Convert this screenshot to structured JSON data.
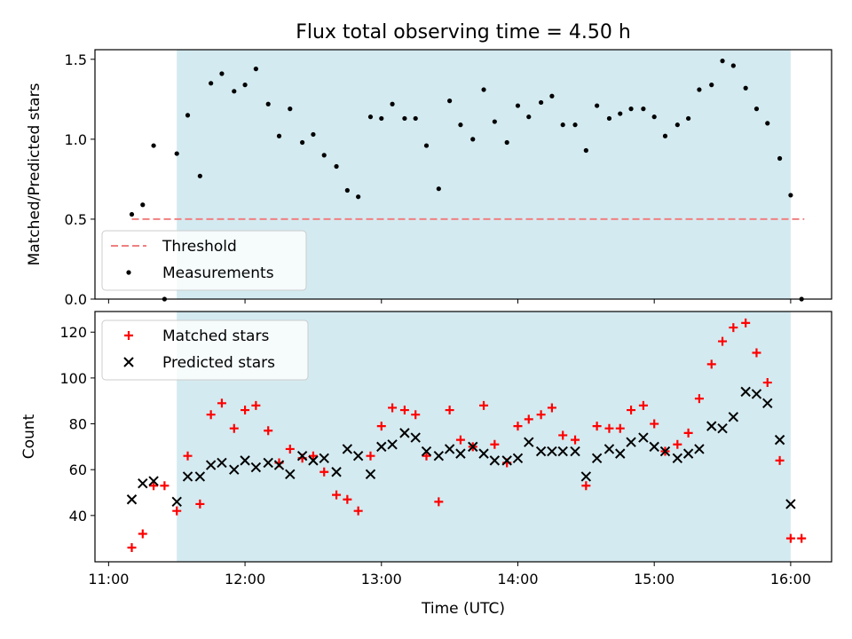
{
  "chart_data": {
    "type": "scatter",
    "title": "Flux total observing time = 4.50 h",
    "xlabel": "Time (UTC)",
    "x_unit": "hours UTC",
    "xlim": [
      10.9,
      16.3
    ],
    "x_ticks": [
      {
        "value": 11,
        "label": "11:00"
      },
      {
        "value": 12,
        "label": "12:00"
      },
      {
        "value": 13,
        "label": "13:00"
      },
      {
        "value": 14,
        "label": "14:00"
      },
      {
        "value": 15,
        "label": "15:00"
      },
      {
        "value": 16,
        "label": "16:00"
      }
    ],
    "observing_window": {
      "start": 11.5,
      "end": 16.0,
      "color": "#d3eaf0"
    },
    "panels": [
      {
        "name": "ratio",
        "ylabel": "Matched/Predicted stars",
        "ylim": [
          0,
          1.56
        ],
        "y_ticks": [
          0,
          0.5,
          1.0,
          1.5
        ],
        "y_tick_labels": [
          "0.0",
          "0.5",
          "1.0",
          "1.5"
        ],
        "legend": {
          "placement": "lower-left",
          "entries": [
            "Threshold",
            "Measurements"
          ]
        },
        "series": [
          {
            "name": "Threshold",
            "style": "dashed-line",
            "color": "#f08080",
            "points": [
              [
                11.17,
                0.5
              ],
              [
                16.1,
                0.5
              ]
            ]
          },
          {
            "name": "Measurements",
            "style": "dot",
            "color": "#000000",
            "points": [
              [
                11.17,
                0.53
              ],
              [
                11.25,
                0.59
              ],
              [
                11.33,
                0.96
              ],
              [
                11.41,
                0.0
              ],
              [
                11.5,
                0.91
              ],
              [
                11.58,
                1.15
              ],
              [
                11.67,
                0.77
              ],
              [
                11.75,
                1.35
              ],
              [
                11.83,
                1.41
              ],
              [
                11.92,
                1.3
              ],
              [
                12.0,
                1.34
              ],
              [
                12.08,
                1.44
              ],
              [
                12.17,
                1.22
              ],
              [
                12.25,
                1.02
              ],
              [
                12.33,
                1.19
              ],
              [
                12.42,
                0.98
              ],
              [
                12.5,
                1.03
              ],
              [
                12.58,
                0.9
              ],
              [
                12.67,
                0.83
              ],
              [
                12.75,
                0.68
              ],
              [
                12.83,
                0.64
              ],
              [
                12.92,
                1.14
              ],
              [
                13.0,
                1.13
              ],
              [
                13.08,
                1.22
              ],
              [
                13.17,
                1.13
              ],
              [
                13.25,
                1.13
              ],
              [
                13.33,
                0.96
              ],
              [
                13.42,
                0.69
              ],
              [
                13.5,
                1.24
              ],
              [
                13.58,
                1.09
              ],
              [
                13.67,
                1.0
              ],
              [
                13.75,
                1.31
              ],
              [
                13.83,
                1.11
              ],
              [
                13.92,
                0.98
              ],
              [
                14.0,
                1.21
              ],
              [
                14.08,
                1.14
              ],
              [
                14.17,
                1.23
              ],
              [
                14.25,
                1.27
              ],
              [
                14.33,
                1.09
              ],
              [
                14.42,
                1.09
              ],
              [
                14.5,
                0.93
              ],
              [
                14.58,
                1.21
              ],
              [
                14.67,
                1.13
              ],
              [
                14.75,
                1.16
              ],
              [
                14.83,
                1.19
              ],
              [
                14.92,
                1.19
              ],
              [
                15.0,
                1.14
              ],
              [
                15.08,
                1.02
              ],
              [
                15.17,
                1.09
              ],
              [
                15.25,
                1.13
              ],
              [
                15.33,
                1.31
              ],
              [
                15.42,
                1.34
              ],
              [
                15.5,
                1.49
              ],
              [
                15.58,
                1.46
              ],
              [
                15.67,
                1.32
              ],
              [
                15.75,
                1.19
              ],
              [
                15.83,
                1.1
              ],
              [
                15.92,
                0.88
              ],
              [
                16.0,
                0.65
              ],
              [
                16.08,
                0.0
              ]
            ]
          }
        ]
      },
      {
        "name": "counts",
        "ylabel": "Count",
        "ylim": [
          19.8,
          129
        ],
        "y_ticks": [
          40,
          60,
          80,
          100,
          120
        ],
        "y_tick_labels": [
          "40",
          "60",
          "80",
          "100",
          "120"
        ],
        "legend": {
          "placement": "upper-left",
          "entries": [
            "Matched stars",
            "Predicted stars"
          ]
        },
        "series": [
          {
            "name": "Matched stars",
            "style": "plus",
            "color": "#ff0000",
            "points": [
              [
                11.17,
                26
              ],
              [
                11.25,
                32
              ],
              [
                11.33,
                53
              ],
              [
                11.41,
                53
              ],
              [
                11.5,
                42
              ],
              [
                11.58,
                66
              ],
              [
                11.67,
                45
              ],
              [
                11.75,
                84
              ],
              [
                11.83,
                89
              ],
              [
                11.92,
                78
              ],
              [
                12.0,
                86
              ],
              [
                12.08,
                88
              ],
              [
                12.17,
                77
              ],
              [
                12.25,
                63
              ],
              [
                12.33,
                69
              ],
              [
                12.42,
                65
              ],
              [
                12.5,
                66
              ],
              [
                12.58,
                59
              ],
              [
                12.67,
                49
              ],
              [
                12.75,
                47
              ],
              [
                12.83,
                42
              ],
              [
                12.92,
                66
              ],
              [
                13.0,
                79
              ],
              [
                13.08,
                87
              ],
              [
                13.17,
                86
              ],
              [
                13.25,
                84
              ],
              [
                13.33,
                66
              ],
              [
                13.42,
                46
              ],
              [
                13.5,
                86
              ],
              [
                13.58,
                73
              ],
              [
                13.67,
                70
              ],
              [
                13.75,
                88
              ],
              [
                13.83,
                71
              ],
              [
                13.92,
                63
              ],
              [
                14.0,
                79
              ],
              [
                14.08,
                82
              ],
              [
                14.17,
                84
              ],
              [
                14.25,
                87
              ],
              [
                14.33,
                75
              ],
              [
                14.42,
                73
              ],
              [
                14.5,
                53
              ],
              [
                14.58,
                79
              ],
              [
                14.67,
                78
              ],
              [
                14.75,
                78
              ],
              [
                14.83,
                86
              ],
              [
                14.92,
                88
              ],
              [
                15.0,
                80
              ],
              [
                15.08,
                68
              ],
              [
                15.17,
                71
              ],
              [
                15.25,
                76
              ],
              [
                15.33,
                91
              ],
              [
                15.42,
                106
              ],
              [
                15.5,
                116
              ],
              [
                15.58,
                122
              ],
              [
                15.67,
                124
              ],
              [
                15.75,
                111
              ],
              [
                15.83,
                98
              ],
              [
                15.92,
                64
              ],
              [
                16.0,
                30
              ],
              [
                16.08,
                30
              ]
            ]
          },
          {
            "name": "Predicted stars",
            "style": "x",
            "color": "#000000",
            "points": [
              [
                11.17,
                47
              ],
              [
                11.25,
                54
              ],
              [
                11.33,
                55
              ],
              [
                11.5,
                46
              ],
              [
                11.58,
                57
              ],
              [
                11.67,
                57
              ],
              [
                11.75,
                62
              ],
              [
                11.83,
                63
              ],
              [
                11.92,
                60
              ],
              [
                12.0,
                64
              ],
              [
                12.08,
                61
              ],
              [
                12.17,
                63
              ],
              [
                12.25,
                62
              ],
              [
                12.33,
                58
              ],
              [
                12.42,
                66
              ],
              [
                12.5,
                64
              ],
              [
                12.58,
                65
              ],
              [
                12.67,
                59
              ],
              [
                12.75,
                69
              ],
              [
                12.83,
                66
              ],
              [
                12.92,
                58
              ],
              [
                13.0,
                70
              ],
              [
                13.08,
                71
              ],
              [
                13.17,
                76
              ],
              [
                13.25,
                74
              ],
              [
                13.33,
                68
              ],
              [
                13.42,
                66
              ],
              [
                13.5,
                69
              ],
              [
                13.58,
                67
              ],
              [
                13.67,
                70
              ],
              [
                13.75,
                67
              ],
              [
                13.83,
                64
              ],
              [
                13.92,
                64
              ],
              [
                14.0,
                65
              ],
              [
                14.08,
                72
              ],
              [
                14.17,
                68
              ],
              [
                14.25,
                68
              ],
              [
                14.33,
                68
              ],
              [
                14.42,
                68
              ],
              [
                14.5,
                57
              ],
              [
                14.58,
                65
              ],
              [
                14.67,
                69
              ],
              [
                14.75,
                67
              ],
              [
                14.83,
                72
              ],
              [
                14.92,
                74
              ],
              [
                15.0,
                70
              ],
              [
                15.08,
                68
              ],
              [
                15.17,
                65
              ],
              [
                15.25,
                67
              ],
              [
                15.33,
                69
              ],
              [
                15.42,
                79
              ],
              [
                15.5,
                78
              ],
              [
                15.58,
                83
              ],
              [
                15.67,
                94
              ],
              [
                15.75,
                93
              ],
              [
                15.83,
                89
              ],
              [
                15.92,
                73
              ],
              [
                16.0,
                45
              ]
            ]
          }
        ]
      }
    ]
  }
}
